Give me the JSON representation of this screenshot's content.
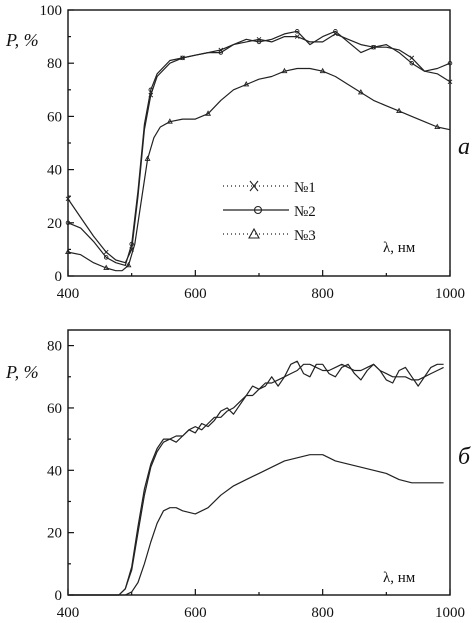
{
  "chart_data": [
    {
      "type": "line",
      "panel_label": "а",
      "ylabel": "P, %",
      "xlabel": "λ, нм",
      "xlim": [
        400,
        1000
      ],
      "ylim": [
        0,
        100
      ],
      "xticks": [
        "400",
        "600",
        "800",
        "1000"
      ],
      "yticks": [
        "0",
        "20",
        "40",
        "60",
        "80",
        "100"
      ],
      "legend_position": "center",
      "grid": false,
      "series": [
        {
          "name": "№1",
          "marker": "x",
          "x": [
            400,
            420,
            440,
            460,
            475,
            490,
            500,
            510,
            520,
            530,
            540,
            560,
            580,
            600,
            620,
            640,
            660,
            680,
            700,
            720,
            740,
            760,
            780,
            800,
            820,
            840,
            860,
            880,
            900,
            920,
            940,
            960,
            980,
            1000
          ],
          "y": [
            29,
            22,
            15,
            9,
            6,
            5,
            10,
            30,
            55,
            68,
            75,
            80,
            82,
            83,
            84,
            85,
            87,
            88,
            89,
            88,
            90,
            90,
            88,
            88,
            91,
            89,
            87,
            86,
            86,
            85,
            82,
            77,
            76,
            73
          ]
        },
        {
          "name": "№2",
          "marker": "circle",
          "x": [
            400,
            420,
            440,
            460,
            475,
            490,
            500,
            510,
            520,
            530,
            540,
            560,
            580,
            600,
            620,
            640,
            660,
            680,
            700,
            720,
            740,
            760,
            780,
            800,
            820,
            840,
            860,
            880,
            900,
            920,
            940,
            960,
            980,
            1000
          ],
          "y": [
            20,
            18,
            13,
            7,
            5,
            4,
            12,
            32,
            57,
            70,
            76,
            81,
            82,
            83,
            84,
            84,
            87,
            89,
            88,
            89,
            91,
            92,
            87,
            90,
            92,
            88,
            84,
            86,
            87,
            84,
            80,
            77,
            78,
            80
          ]
        },
        {
          "name": "№3",
          "marker": "triangle",
          "x": [
            400,
            420,
            440,
            460,
            475,
            485,
            495,
            505,
            515,
            525,
            535,
            545,
            560,
            580,
            600,
            620,
            640,
            660,
            680,
            700,
            720,
            740,
            760,
            780,
            800,
            820,
            840,
            860,
            880,
            900,
            920,
            940,
            960,
            980,
            1000
          ],
          "y": [
            9,
            8,
            5,
            3,
            2,
            2,
            4,
            12,
            28,
            44,
            52,
            56,
            58,
            59,
            59,
            61,
            66,
            70,
            72,
            74,
            75,
            77,
            78,
            78,
            77,
            75,
            72,
            69,
            66,
            64,
            62,
            60,
            58,
            56,
            55
          ]
        }
      ]
    },
    {
      "type": "line",
      "panel_label": "б",
      "ylabel": "P, %",
      "xlabel": "λ, нм",
      "xlim": [
        400,
        1000
      ],
      "ylim": [
        0,
        85
      ],
      "xticks": [
        "400",
        "600",
        "800",
        "1000"
      ],
      "yticks": [
        "0",
        "20",
        "40",
        "60",
        "80"
      ],
      "grid": false,
      "series": [
        {
          "x": [
            400,
            440,
            480,
            490,
            500,
            510,
            520,
            530,
            540,
            550,
            560,
            570,
            580,
            590,
            600,
            610,
            620,
            630,
            640,
            650,
            660,
            670,
            680,
            690,
            700,
            710,
            720,
            730,
            740,
            750,
            760,
            770,
            780,
            790,
            800,
            810,
            820,
            830,
            840,
            850,
            860,
            870,
            880,
            890,
            900,
            910,
            920,
            930,
            940,
            950,
            960,
            970,
            980,
            990
          ],
          "y": [
            0,
            0,
            0,
            2,
            8,
            20,
            32,
            41,
            46,
            49,
            50,
            51,
            51,
            53,
            54,
            53,
            55,
            57,
            57,
            59,
            60,
            62,
            64,
            64,
            66,
            68,
            68,
            69,
            70,
            71,
            72,
            74,
            74,
            73,
            72,
            72,
            73,
            74,
            73,
            72,
            72,
            73,
            74,
            72,
            71,
            70,
            70,
            70,
            69,
            69,
            70,
            71,
            72,
            73
          ]
        },
        {
          "x": [
            400,
            440,
            480,
            490,
            500,
            510,
            520,
            530,
            540,
            550,
            560,
            570,
            580,
            590,
            600,
            610,
            620,
            630,
            640,
            650,
            660,
            670,
            680,
            690,
            700,
            710,
            720,
            730,
            740,
            750,
            760,
            770,
            780,
            790,
            800,
            810,
            820,
            830,
            840,
            850,
            860,
            870,
            880,
            890,
            900,
            910,
            920,
            930,
            940,
            950,
            960,
            970,
            980,
            990
          ],
          "y": [
            0,
            0,
            0,
            2,
            9,
            22,
            34,
            42,
            47,
            50,
            50,
            49,
            51,
            53,
            52,
            55,
            54,
            56,
            59,
            60,
            58,
            61,
            64,
            67,
            66,
            67,
            70,
            67,
            70,
            74,
            75,
            71,
            70,
            74,
            74,
            71,
            70,
            73,
            74,
            71,
            69,
            72,
            74,
            72,
            69,
            68,
            72,
            73,
            70,
            67,
            70,
            73,
            74,
            74
          ]
        },
        {
          "x": [
            400,
            440,
            480,
            490,
            500,
            510,
            520,
            530,
            540,
            550,
            560,
            570,
            580,
            600,
            620,
            640,
            660,
            680,
            700,
            720,
            740,
            760,
            780,
            800,
            820,
            840,
            860,
            880,
            900,
            920,
            940,
            960,
            980,
            990
          ],
          "y": [
            0,
            0,
            0,
            0,
            1,
            4,
            10,
            17,
            23,
            27,
            28,
            28,
            27,
            26,
            28,
            32,
            35,
            37,
            39,
            41,
            43,
            44,
            45,
            45,
            43,
            42,
            41,
            40,
            39,
            37,
            36,
            36,
            36,
            36
          ]
        }
      ]
    }
  ]
}
